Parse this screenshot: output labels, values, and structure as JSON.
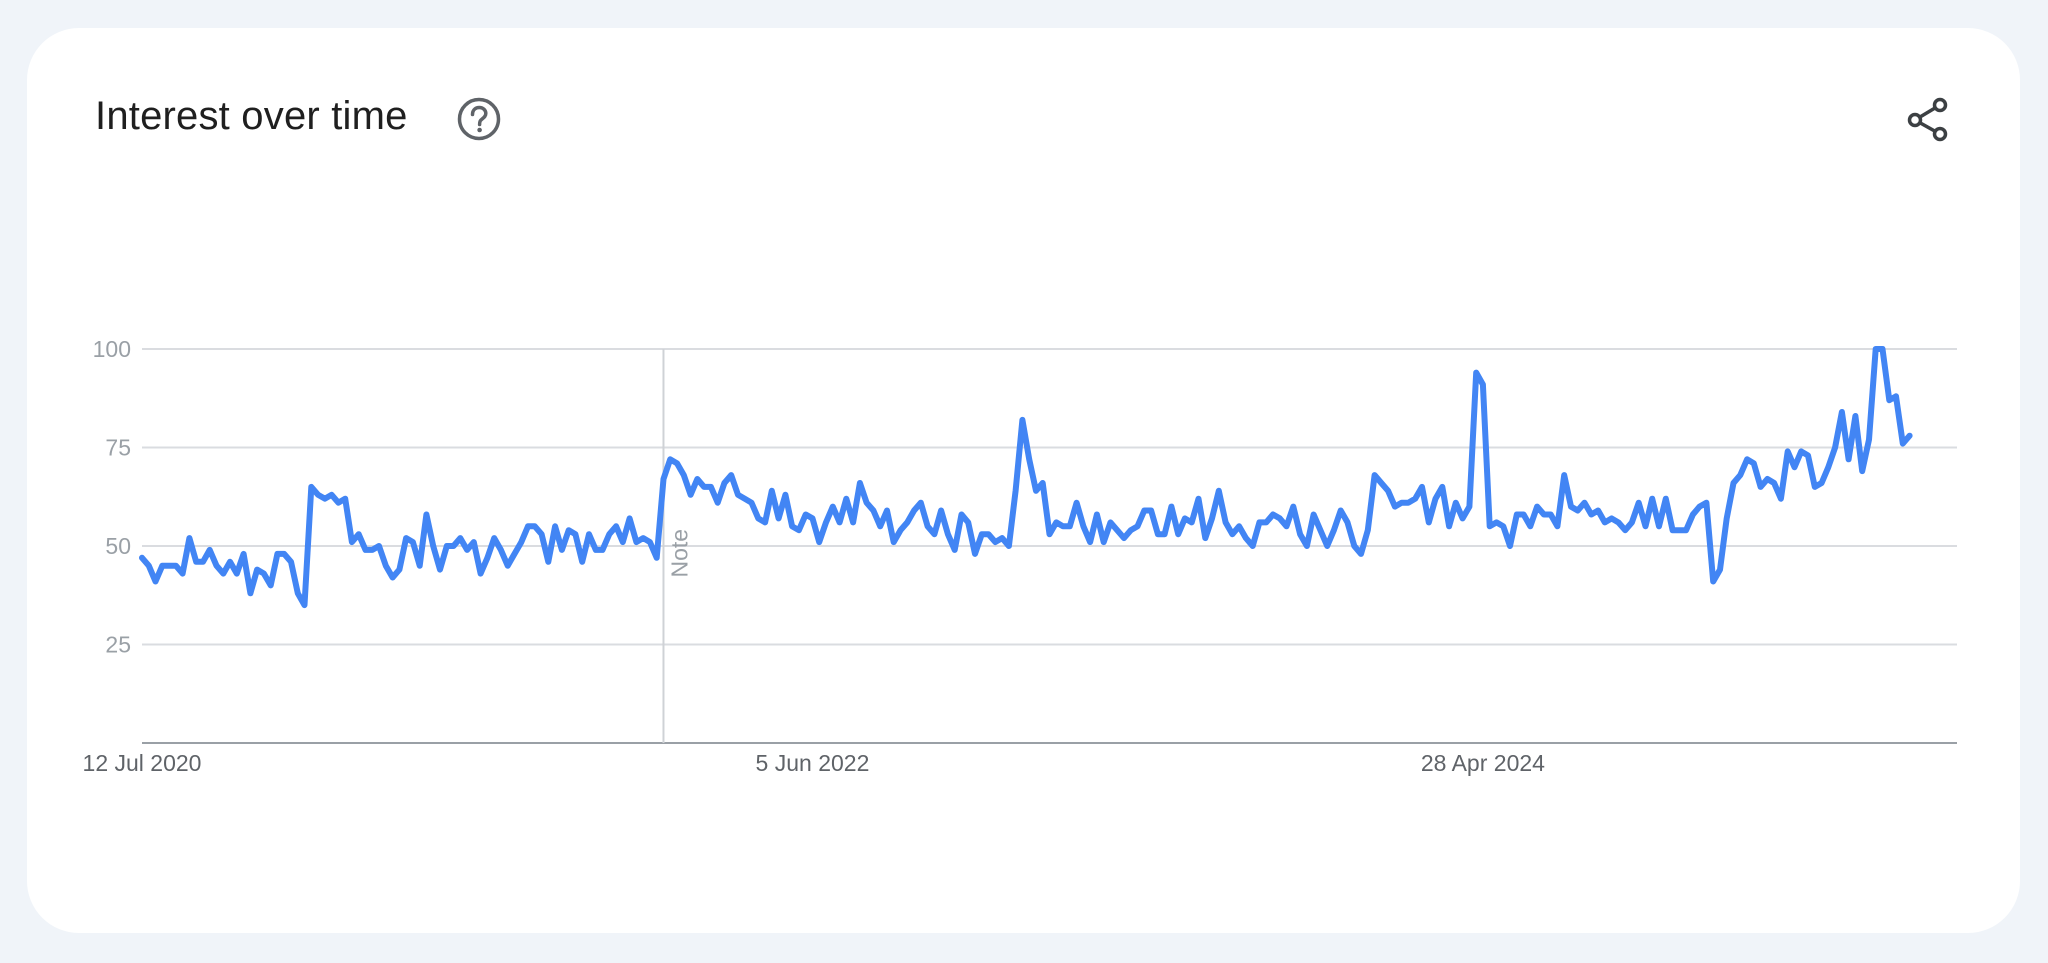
{
  "header": {
    "title": "Interest over time"
  },
  "colors": {
    "line": "#4285f4",
    "grid": "#dadce0",
    "axis": "#9aa0a6",
    "note_line": "#cfd2d6"
  },
  "icons": {
    "help": "help-circle-icon",
    "share": "share-icon"
  },
  "chart_data": {
    "type": "line",
    "title": "Interest over time",
    "xlabel": "",
    "ylabel": "",
    "ylim": [
      0,
      100
    ],
    "y_ticks": [
      "25",
      "50",
      "75",
      "100"
    ],
    "x_tick_labels": [
      {
        "date": "2020-07-12",
        "label": "12 Jul 2020"
      },
      {
        "date": "2022-06-05",
        "label": "5 Jun 2022"
      },
      {
        "date": "2024-04-28",
        "label": "28 Apr 2024"
      }
    ],
    "x_range": [
      "2020-07-12",
      "2025-08-31"
    ],
    "grid": true,
    "annotations": [
      {
        "date": "2022-01-02",
        "label": "Note"
      }
    ],
    "series": [
      {
        "frequency": "weekly",
        "start": "2020-07-12",
        "values": [
          47,
          45,
          41,
          45,
          45,
          45,
          43,
          52,
          46,
          46,
          49,
          45,
          43,
          46,
          43,
          48,
          38,
          44,
          43,
          40,
          48,
          48,
          46,
          38,
          35,
          65,
          63,
          62,
          63,
          61,
          62,
          51,
          53,
          49,
          49,
          50,
          45,
          42,
          44,
          52,
          51,
          45,
          58,
          50,
          44,
          50,
          50,
          52,
          49,
          51,
          43,
          47,
          52,
          49,
          45,
          48,
          51,
          55,
          55,
          53,
          46,
          55,
          49,
          54,
          53,
          46,
          53,
          49,
          49,
          53,
          55,
          51,
          57,
          51,
          52,
          51,
          47,
          67,
          72,
          71,
          68,
          63,
          67,
          65,
          65,
          61,
          66,
          68,
          63,
          62,
          61,
          57,
          56,
          64,
          57,
          63,
          55,
          54,
          58,
          57,
          51,
          56,
          60,
          56,
          62,
          56,
          66,
          61,
          59,
          55,
          59,
          51,
          54,
          56,
          59,
          61,
          55,
          53,
          59,
          53,
          49,
          58,
          56,
          48,
          53,
          53,
          51,
          52,
          50,
          64,
          82,
          72,
          64,
          66,
          53,
          56,
          55,
          55,
          61,
          55,
          51,
          58,
          51,
          56,
          54,
          52,
          54,
          55,
          59,
          59,
          53,
          53,
          60,
          53,
          57,
          56,
          62,
          52,
          57,
          64,
          56,
          53,
          55,
          52,
          50,
          56,
          56,
          58,
          57,
          55,
          60,
          53,
          50,
          58,
          54,
          50,
          54,
          59,
          56,
          50,
          48,
          54,
          68,
          66,
          64,
          60,
          61,
          61,
          62,
          65,
          56,
          62,
          65,
          55,
          61,
          57,
          60,
          94,
          91,
          55,
          56,
          55,
          50,
          58,
          58,
          55,
          60,
          58,
          58,
          55,
          68,
          60,
          59,
          61,
          58,
          59,
          56,
          57,
          56,
          54,
          56,
          61,
          55,
          62,
          55,
          62,
          54,
          54,
          54,
          58,
          60,
          61,
          41,
          44,
          57,
          66,
          68,
          72,
          71,
          65,
          67,
          66,
          62,
          74,
          70,
          74,
          73,
          65,
          66,
          70,
          75,
          84,
          72,
          83,
          69,
          77,
          100,
          100,
          87,
          88,
          76,
          78
        ]
      }
    ]
  }
}
